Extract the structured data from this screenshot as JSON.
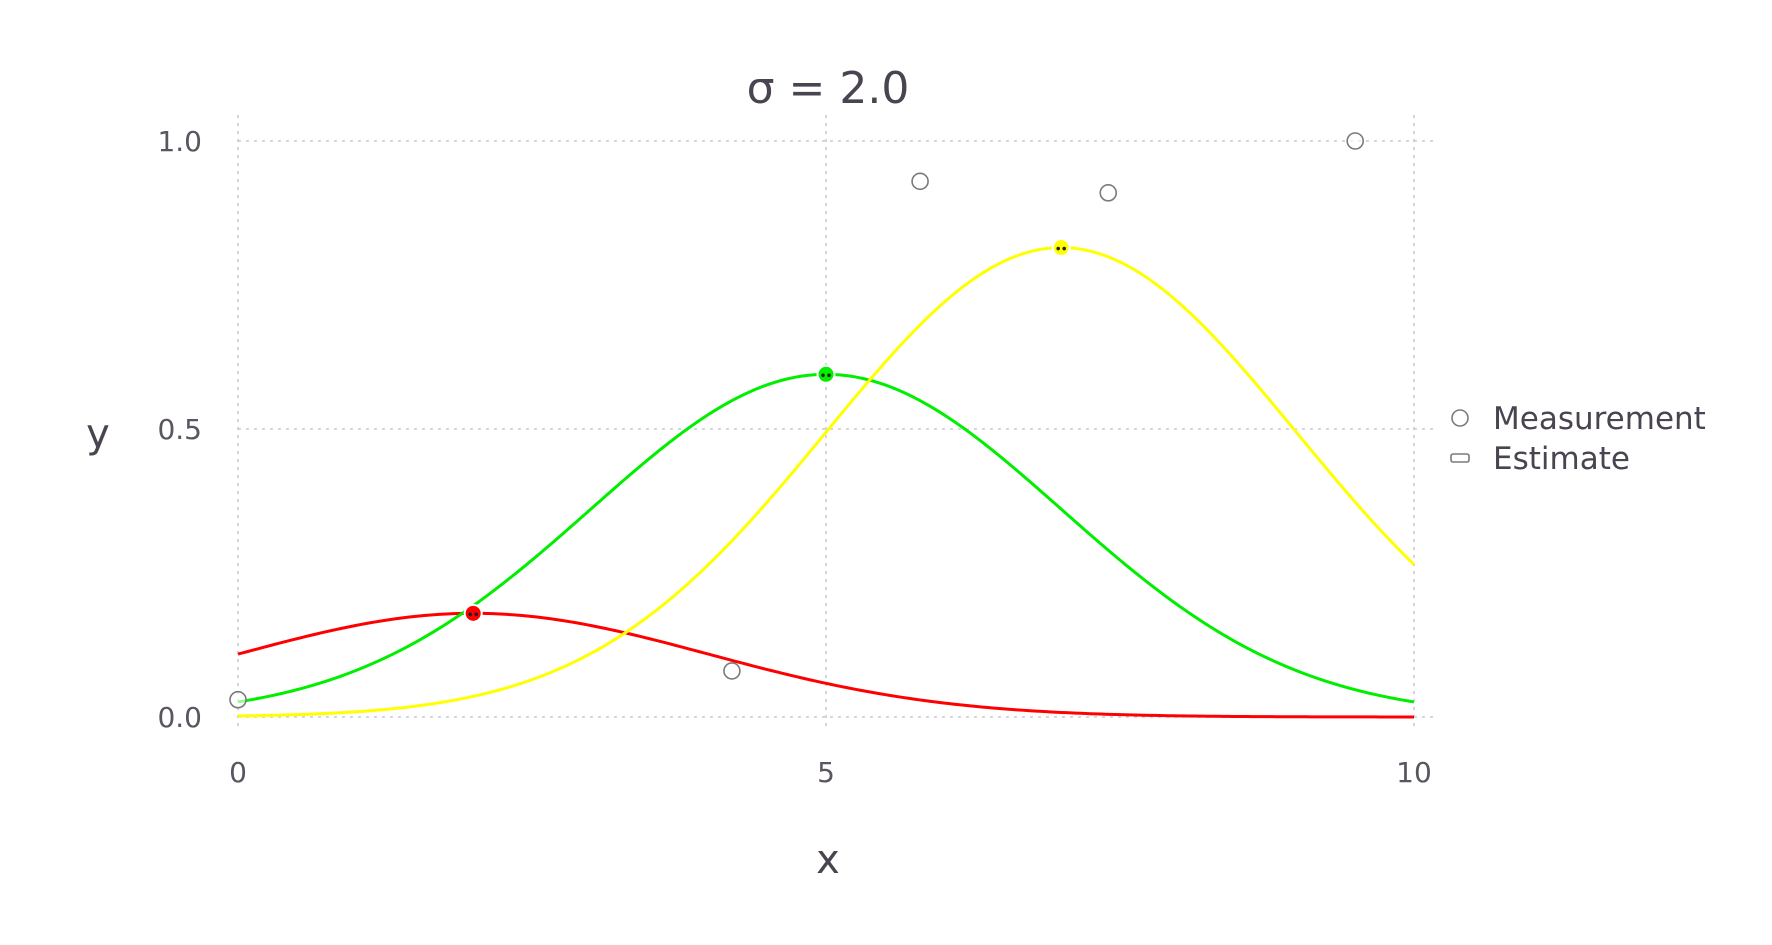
{
  "chart_data": {
    "type": "line",
    "title": "σ = 2.0",
    "xlabel": "x",
    "ylabel": "y",
    "xlim": [
      0,
      10
    ],
    "ylim": [
      0,
      1.0
    ],
    "x_ticks": [
      {
        "value": 0,
        "label": "0"
      },
      {
        "value": 5,
        "label": "5"
      },
      {
        "value": 10,
        "label": "10"
      }
    ],
    "y_ticks": [
      {
        "value": 0.0,
        "label": "0.0"
      },
      {
        "value": 0.5,
        "label": "0.5"
      },
      {
        "value": 1.0,
        "label": "1.0"
      }
    ],
    "grid": true,
    "legend": {
      "position": "right",
      "entries": [
        {
          "label": "Measurement",
          "marker": "circle"
        },
        {
          "label": "Estimate",
          "marker": "line"
        }
      ]
    },
    "measurements": [
      {
        "x": 0.0,
        "y": 0.03
      },
      {
        "x": 4.2,
        "y": 0.08
      },
      {
        "x": 5.8,
        "y": 0.93
      },
      {
        "x": 7.4,
        "y": 0.91
      },
      {
        "x": 9.5,
        "y": 1.0
      }
    ],
    "series": [
      {
        "color": "#ff0000",
        "amplitude": 0.18,
        "center": 2.0,
        "sigma": 2.0,
        "estimate": {
          "x": 2.0,
          "y": 0.18
        }
      },
      {
        "color": "#00ee00",
        "amplitude": 0.595,
        "center": 5.0,
        "sigma": 2.0,
        "estimate": {
          "x": 5.0,
          "y": 0.595
        }
      },
      {
        "color": "#ffff00",
        "amplitude": 0.815,
        "center": 7.0,
        "sigma": 2.0,
        "estimate": {
          "x": 7.0,
          "y": 0.815
        }
      }
    ]
  }
}
